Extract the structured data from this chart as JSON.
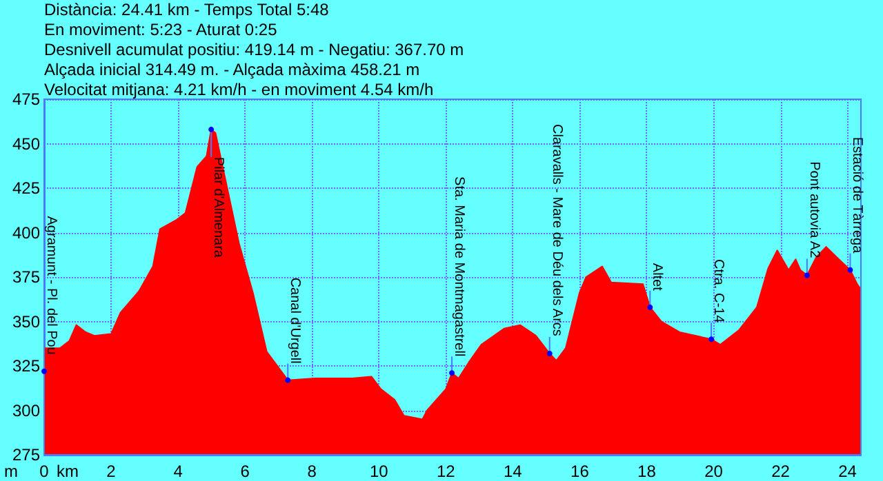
{
  "chart_data": {
    "type": "area",
    "title": "Distància: 24.41 km - Temps Total 5:48",
    "xlabel": "km",
    "ylabel": "m",
    "annotations": [
      "En moviment: 5:23 - Aturat 0:25",
      "Desnivell acumulat positiu: 419.14 m - Negatiu: 367.70 m",
      "Alçada inicial 314.49 m. - Alçada màxima 458.21 m",
      "Velocitat mitjana: 4.21 km/h - en moviment 4.54 km/h",
      {
        "text": "Agramunt - Pl. del Pou",
        "x": 0,
        "y": 322
      },
      {
        "text": "Pilar d'Almenara",
        "x": 4.99,
        "y": 458
      },
      {
        "text": "Canal d'Urgell",
        "x": 7.28,
        "y": 317
      },
      {
        "text": "Sta. Maria de Montmagastrell",
        "x": 12.18,
        "y": 321
      },
      {
        "text": "Claravalls - Mare de Déu dels Arcs",
        "x": 15.1,
        "y": 332
      },
      {
        "text": "Altet",
        "x": 18.1,
        "y": 358
      },
      {
        "text": "Ctra. C-14",
        "x": 19.93,
        "y": 340
      },
      {
        "text": "Pont autovia A2",
        "x": 22.79,
        "y": 376
      },
      {
        "text": "Estació de Tàrrega",
        "x": 24.08,
        "y": 379
      }
    ],
    "series": [
      {
        "color": "#ff0000",
        "x": [
          0,
          0.01,
          0.47,
          0.75,
          0.96,
          1.24,
          1.5,
          2,
          2.28,
          2.83,
          3.25,
          3.46,
          3.94,
          4.22,
          4.57,
          4.85,
          4.99,
          5.12,
          5.47,
          5.82,
          6.24,
          6.65,
          7.28,
          8.1,
          9.2,
          9.78,
          10.06,
          10.47,
          10.75,
          11.3,
          11.44,
          12.0,
          12.18,
          12.38,
          12.72,
          13.06,
          13.74,
          14.22,
          14.69,
          15.1,
          15.3,
          15.58,
          15.99,
          16.19,
          16.67,
          16.94,
          17.89,
          18.1,
          18.44,
          18.98,
          19.93,
          20.2,
          20.75,
          21.29,
          21.63,
          21.9,
          22.24,
          22.45,
          22.59,
          22.79,
          23.06,
          23.36,
          23.74,
          24.08,
          24.29,
          24.4
        ],
        "values": [
          322,
          335,
          335,
          339,
          348,
          344,
          342,
          343,
          355,
          367,
          381,
          402,
          407,
          411,
          437,
          443,
          458,
          456,
          425,
          394,
          366,
          333,
          317,
          318,
          318,
          319,
          312,
          306,
          297,
          295,
          300,
          312,
          321,
          318,
          328,
          337,
          346,
          348,
          342,
          332,
          328,
          335,
          366,
          375,
          381,
          372,
          371,
          358,
          350,
          344,
          340,
          337,
          345,
          358,
          380,
          390,
          379,
          385,
          379,
          376,
          386,
          392,
          385,
          379,
          371,
          368
        ]
      }
    ],
    "xlim": [
      0,
      24.4
    ],
    "xticks": [
      0,
      2,
      4,
      6,
      8,
      10,
      12,
      14,
      16,
      18,
      20,
      22,
      24
    ],
    "ylim": [
      275,
      475
    ],
    "yticks": [
      275,
      300,
      325,
      350,
      375,
      400,
      425,
      450,
      475
    ],
    "grid": true,
    "marker": "none"
  }
}
